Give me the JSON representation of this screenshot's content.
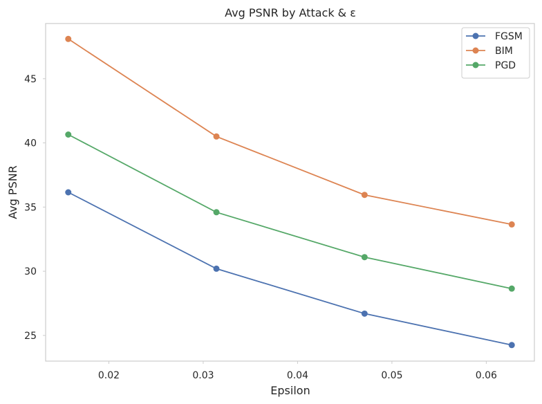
{
  "chart_data": {
    "type": "line",
    "title": "Avg PSNR by Attack & ε",
    "xlabel": "Epsilon",
    "ylabel": "Avg PSNR",
    "x": [
      0.0157,
      0.0314,
      0.0471,
      0.0627
    ],
    "xlim": [
      0.0133,
      0.0651
    ],
    "ylim": [
      23.0,
      49.3
    ],
    "xticks": [
      0.02,
      0.03,
      0.04,
      0.05,
      0.06
    ],
    "yticks": [
      25,
      30,
      35,
      40,
      45
    ],
    "grid": false,
    "legend_position": "top-right",
    "series": [
      {
        "name": "FGSM",
        "color": "#4c72b0",
        "values": [
          36.15,
          30.2,
          26.7,
          24.25
        ]
      },
      {
        "name": "BIM",
        "color": "#dd8452",
        "values": [
          48.1,
          40.5,
          35.95,
          33.65
        ]
      },
      {
        "name": "PGD",
        "color": "#55a868",
        "values": [
          40.65,
          34.6,
          31.1,
          28.65
        ]
      }
    ]
  }
}
